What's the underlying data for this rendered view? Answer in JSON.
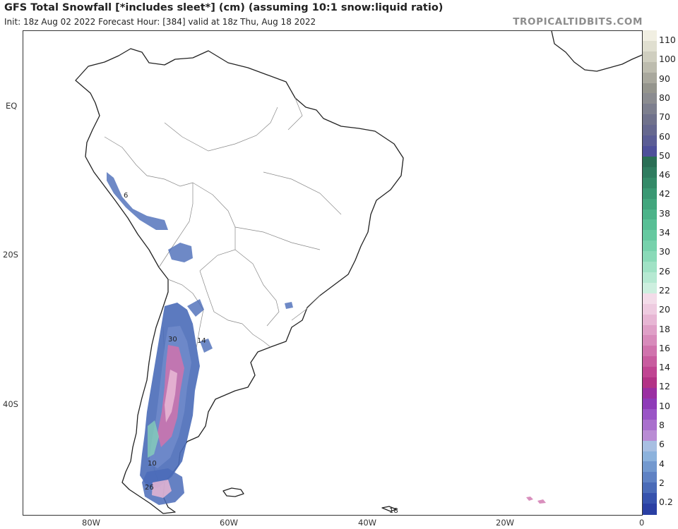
{
  "header": {
    "title": "GFS Total Snowfall [*includes sleet*] (cm) (assuming 10:1 snow:liquid ratio)",
    "subtitle": "Init: 18z Aug 02 2022   Forecast Hour: [384]   valid at 18z Thu, Aug 18 2022",
    "brand": "TROPICALTIDBITS.COM"
  },
  "axes": {
    "lat_labels": [
      "EQ",
      "20S",
      "40S"
    ],
    "lon_labels": [
      "80W",
      "60W",
      "40W",
      "20W",
      "0"
    ]
  },
  "map_labels": [
    "6",
    "30",
    "14",
    "10",
    "26",
    "18"
  ],
  "colorbar": {
    "labels": [
      "110",
      "100",
      "90",
      "80",
      "70",
      "60",
      "50",
      "46",
      "42",
      "38",
      "34",
      "30",
      "26",
      "22",
      "20",
      "18",
      "16",
      "14",
      "12",
      "10",
      "8",
      "6",
      "4",
      "2",
      "0.2"
    ],
    "colors": [
      "#f1efe2",
      "#e0dfd0",
      "#cfcebf",
      "#bdbcae",
      "#a9a89d",
      "#95958d",
      "#8b8c90",
      "#7d7f8e",
      "#70728c",
      "#66688f",
      "#5b5d95",
      "#4e509a",
      "#2a6e55",
      "#2f7c5f",
      "#348a68",
      "#3a9873",
      "#42a67d",
      "#4cb389",
      "#58bf95",
      "#66c9a0",
      "#77d2ac",
      "#8adab8",
      "#a0e2c5",
      "#b6e9d2",
      "#cdefdf",
      "#f3dce9",
      "#eecbe0",
      "#e7b6d4",
      "#dfa0c7",
      "#d88bbb",
      "#d073ad",
      "#c85c9f",
      "#c04592",
      "#b33386",
      "#9b2fa2",
      "#8e3bb8",
      "#9a55c6",
      "#a970cd",
      "#b98cd4",
      "#a8bfe2",
      "#8cb2dc",
      "#7399cf",
      "#5f82c4",
      "#4a6bb8",
      "#3652ad",
      "#2a3fa3"
    ]
  }
}
